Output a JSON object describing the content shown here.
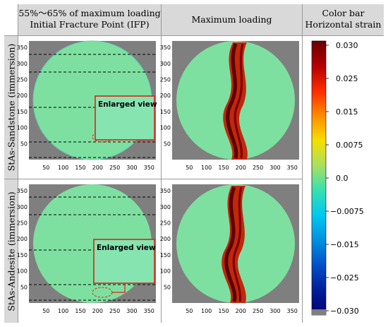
{
  "headers": {
    "col1_line1": "55%～65% of maximum loading",
    "col1_line2": "Initial Fracture Point (IFP)",
    "col2": "Maximum loading",
    "col3_line1": "Color bar",
    "col3_line2": "Horizontal strain"
  },
  "rows": [
    {
      "label": "StAs-Sandstone (immersion)",
      "enlarged_label": "Enlarged view"
    },
    {
      "label": "StAs-Andesite (immersion)",
      "enlarged_label": "Enlarged view"
    }
  ],
  "axis": {
    "x_ticks": [
      "50",
      "100",
      "150",
      "200",
      "250",
      "300",
      "350"
    ],
    "y_ticks": [
      "50",
      "100",
      "150",
      "200",
      "250",
      "300",
      "350"
    ]
  },
  "colorbar": {
    "ticks": [
      "0.030",
      "0.025",
      "0.015",
      "0.0075",
      "0.0",
      "-0.0075",
      "-0.015",
      "-0.025",
      "-0.030"
    ],
    "gradient": [
      "#6b0000",
      "#b30000",
      "#ff2a00",
      "#ff8c00",
      "#f5e000",
      "#a8e060",
      "#36e0b0",
      "#00c8f0",
      "#0090e0",
      "#0050c8",
      "#001e9a",
      "#00006e"
    ],
    "below_min_color": "#7f7f7f"
  },
  "colors": {
    "header_bg": "#d9d9d9",
    "plot_bg": "#7f7f7f",
    "inset_border": "#e0201a"
  }
}
